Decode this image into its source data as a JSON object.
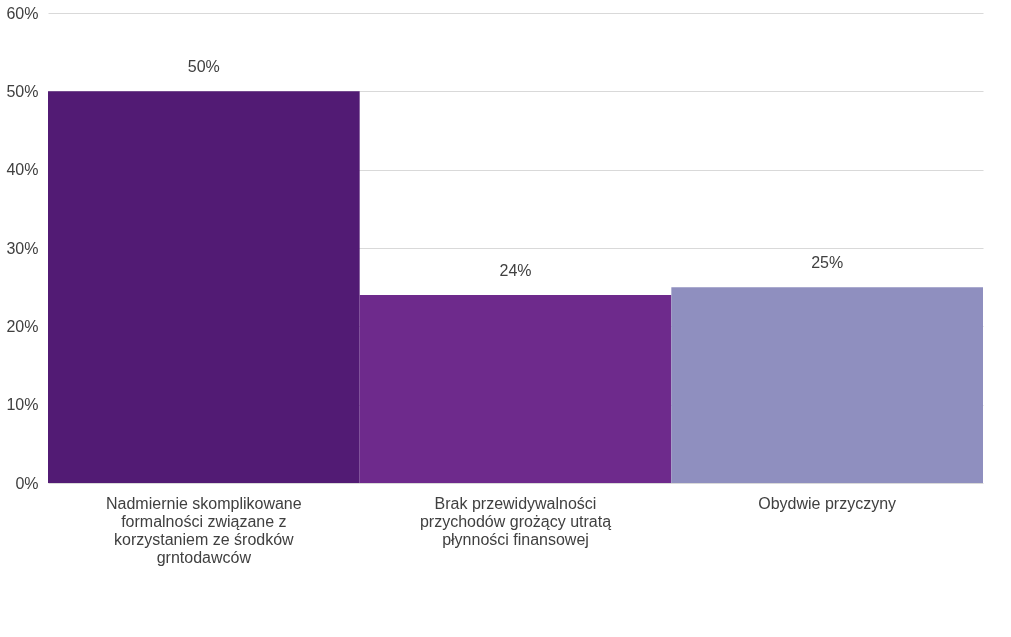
{
  "chart_data": {
    "type": "bar",
    "categories": [
      "Nadmiernie skomplikowane formalności związane z korzystaniem ze środków grntodawców",
      "Brak przewidywalności przychodów grożący utratą płynności finansowej",
      "Obydwie przyczyny"
    ],
    "values": [
      50,
      24,
      25
    ],
    "colors": [
      "#521b74",
      "#6e2a8c",
      "#8f8fbf"
    ],
    "value_labels": [
      "50%",
      "24%",
      "25%"
    ],
    "ylim": [
      0,
      60
    ],
    "yticks": [
      {
        "value": 0,
        "label": "0%"
      },
      {
        "value": 10,
        "label": "10%"
      },
      {
        "value": 20,
        "label": "20%"
      },
      {
        "value": 30,
        "label": "30%"
      },
      {
        "value": 40,
        "label": "40%"
      },
      {
        "value": 50,
        "label": "50%"
      },
      {
        "value": 60,
        "label": "60%"
      }
    ],
    "grid": "y"
  }
}
